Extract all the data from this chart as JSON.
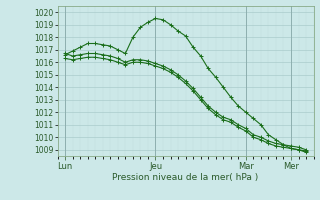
{
  "xlabel": "Pression niveau de la mer( hPa )",
  "ylim": [
    1008.5,
    1020.5
  ],
  "yticks": [
    1009,
    1010,
    1011,
    1012,
    1013,
    1014,
    1015,
    1016,
    1017,
    1018,
    1019,
    1020
  ],
  "bg_color": "#cce8e8",
  "grid_major_color": "#aacccc",
  "grid_minor_color": "#bedddd",
  "line_color": "#1a6e1a",
  "tick_label_color": "#2a5a2a",
  "xtick_labels": [
    "Lun",
    "Jeu",
    "Mar",
    "Mer"
  ],
  "xtick_positions": [
    0,
    12,
    24,
    30
  ],
  "xlim": [
    -1,
    33
  ],
  "series1_x": [
    0,
    1,
    2,
    3,
    4,
    5,
    6,
    7,
    8,
    9,
    10,
    11,
    12,
    13,
    14,
    15,
    16,
    17,
    18,
    19,
    20,
    21,
    22,
    23,
    24,
    25,
    26,
    27,
    28,
    29,
    30,
    31,
    32
  ],
  "series1_y": [
    1016.6,
    1016.9,
    1017.2,
    1017.5,
    1017.5,
    1017.4,
    1017.3,
    1017.0,
    1016.7,
    1018.0,
    1018.8,
    1019.2,
    1019.5,
    1019.4,
    1019.0,
    1018.5,
    1018.1,
    1017.2,
    1016.5,
    1015.5,
    1014.8,
    1014.0,
    1013.2,
    1012.5,
    1012.0,
    1011.5,
    1011.0,
    1010.2,
    1009.8,
    1009.4,
    1009.1,
    1009.0,
    1008.8
  ],
  "series2_x": [
    0,
    1,
    2,
    3,
    4,
    5,
    6,
    7,
    8,
    9,
    10,
    11,
    12,
    13,
    14,
    15,
    16,
    17,
    18,
    19,
    20,
    21,
    22,
    23,
    24,
    25,
    26,
    27,
    28,
    29,
    30,
    31,
    32
  ],
  "series2_y": [
    1016.3,
    1016.2,
    1016.3,
    1016.4,
    1016.4,
    1016.3,
    1016.2,
    1016.0,
    1015.8,
    1016.0,
    1016.0,
    1015.9,
    1015.7,
    1015.5,
    1015.2,
    1014.8,
    1014.3,
    1013.7,
    1013.0,
    1012.3,
    1011.8,
    1011.4,
    1011.2,
    1010.8,
    1010.5,
    1010.0,
    1009.8,
    1009.5,
    1009.3,
    1009.2,
    1009.1,
    1009.0,
    1008.9
  ],
  "series3_x": [
    0,
    1,
    2,
    3,
    4,
    5,
    6,
    7,
    8,
    9,
    10,
    11,
    12,
    13,
    14,
    15,
    16,
    17,
    18,
    19,
    20,
    21,
    22,
    23,
    24,
    25,
    26,
    27,
    28,
    29,
    30,
    31,
    32
  ],
  "series3_y": [
    1016.7,
    1016.5,
    1016.6,
    1016.7,
    1016.7,
    1016.6,
    1016.5,
    1016.3,
    1016.0,
    1016.2,
    1016.2,
    1016.1,
    1015.9,
    1015.7,
    1015.4,
    1015.0,
    1014.5,
    1013.9,
    1013.2,
    1012.5,
    1012.0,
    1011.6,
    1011.4,
    1011.0,
    1010.7,
    1010.2,
    1010.0,
    1009.7,
    1009.5,
    1009.4,
    1009.3,
    1009.2,
    1009.0
  ]
}
